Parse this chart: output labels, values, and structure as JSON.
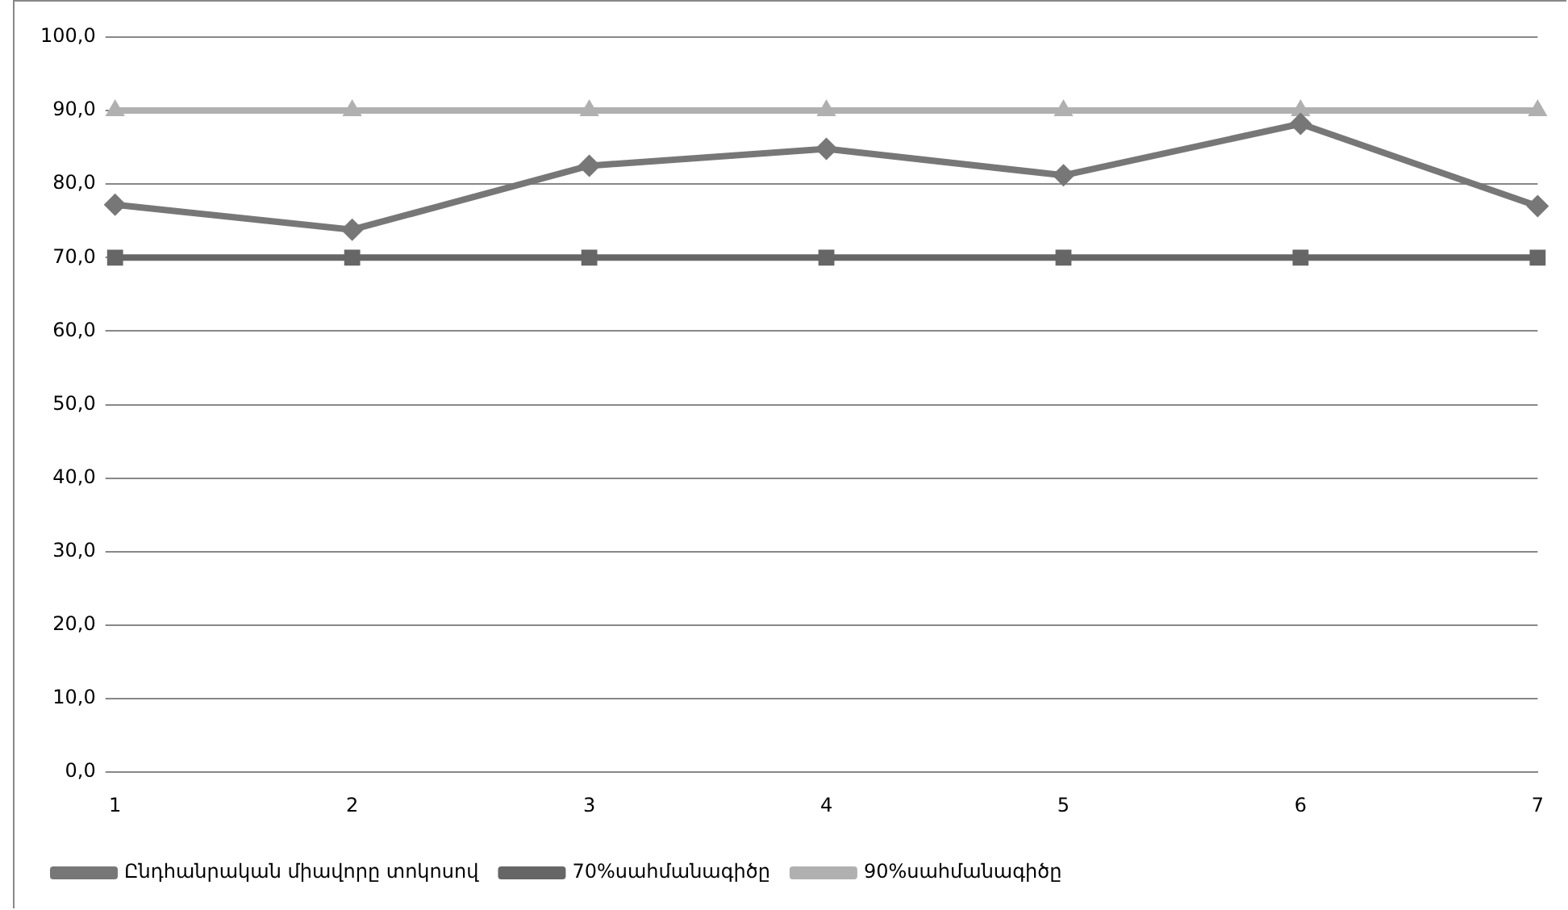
{
  "chart_data": {
    "type": "line",
    "categories": [
      "1",
      "2",
      "3",
      "4",
      "5",
      "6",
      "7"
    ],
    "series": [
      {
        "name": "Ընդհանրական միավորը տոկոսով",
        "color": "#777777",
        "marker": "diamond",
        "values": [
          77.2,
          73.8,
          82.5,
          84.8,
          81.2,
          88.2,
          77.0
        ]
      },
      {
        "name": "70%սահմանագիծը",
        "color": "#666666",
        "marker": "square",
        "values": [
          70,
          70,
          70,
          70,
          70,
          70,
          70
        ]
      },
      {
        "name": "90%սահմանագիծը",
        "color": "#b0b0b0",
        "marker": "triangle",
        "values": [
          90,
          90,
          90,
          90,
          90,
          90,
          90
        ]
      }
    ],
    "ylim": [
      0,
      100
    ],
    "yticks": [
      {
        "value": 0,
        "label": "0,0"
      },
      {
        "value": 10,
        "label": "10,0"
      },
      {
        "value": 20,
        "label": "20,0"
      },
      {
        "value": 30,
        "label": "30,0"
      },
      {
        "value": 40,
        "label": "40,0"
      },
      {
        "value": 50,
        "label": "50,0"
      },
      {
        "value": 60,
        "label": "60,0"
      },
      {
        "value": 70,
        "label": "70,0"
      },
      {
        "value": 80,
        "label": "80,0"
      },
      {
        "value": 90,
        "label": "90,0"
      },
      {
        "value": 100,
        "label": "100,0"
      }
    ],
    "grid": "y",
    "legend": "bottom"
  }
}
